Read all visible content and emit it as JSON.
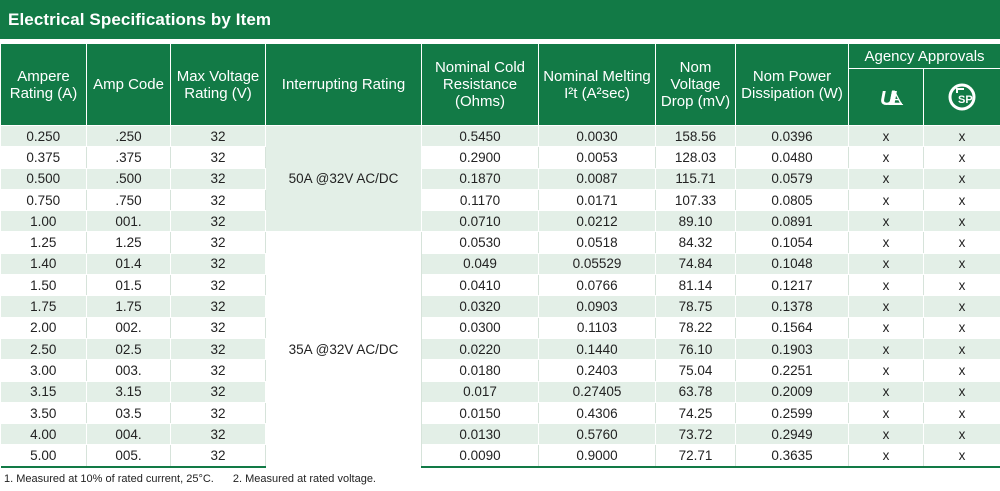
{
  "title": "Electrical Specifications by Item",
  "headers": {
    "ampere_rating": "Ampere Rating (A)",
    "amp_code": "Amp Code",
    "max_voltage": "Max Voltage Rating (V)",
    "interrupting": "Interrupting Rating",
    "cold_resistance": "Nominal Cold Resistance (Ohms)",
    "melting": "Nominal Melting I²t (A²sec)",
    "voltage_drop": "Nom Voltage Drop (mV)",
    "power": "Nom Power Dissipation (W)",
    "agency": "Agency Approvals",
    "agency_icons": [
      "ul-recognized-icon",
      "csa-icon"
    ]
  },
  "interrupting_groups": [
    {
      "label": "50A @32V AC/DC",
      "rows": 5
    },
    {
      "label": "35A @32V AC/DC",
      "rows": 11
    }
  ],
  "rows": [
    {
      "amp": "0.250",
      "code": ".250",
      "volt": "32",
      "res": "0.5450",
      "melt": "0.0030",
      "drop": "158.56",
      "power": "0.0396",
      "ul": "x",
      "csa": "x"
    },
    {
      "amp": "0.375",
      "code": ".375",
      "volt": "32",
      "res": "0.2900",
      "melt": "0.0053",
      "drop": "128.03",
      "power": "0.0480",
      "ul": "x",
      "csa": "x"
    },
    {
      "amp": "0.500",
      "code": ".500",
      "volt": "32",
      "res": "0.1870",
      "melt": "0.0087",
      "drop": "115.71",
      "power": "0.0579",
      "ul": "x",
      "csa": "x"
    },
    {
      "amp": "0.750",
      "code": ".750",
      "volt": "32",
      "res": "0.1170",
      "melt": "0.0171",
      "drop": "107.33",
      "power": "0.0805",
      "ul": "x",
      "csa": "x"
    },
    {
      "amp": "1.00",
      "code": "001.",
      "volt": "32",
      "res": "0.0710",
      "melt": "0.0212",
      "drop": "89.10",
      "power": "0.0891",
      "ul": "x",
      "csa": "x"
    },
    {
      "amp": "1.25",
      "code": "1.25",
      "volt": "32",
      "res": "0.0530",
      "melt": "0.0518",
      "drop": "84.32",
      "power": "0.1054",
      "ul": "x",
      "csa": "x"
    },
    {
      "amp": "1.40",
      "code": "01.4",
      "volt": "32",
      "res": "0.049",
      "melt": "0.05529",
      "drop": "74.84",
      "power": "0.1048",
      "ul": "x",
      "csa": "x"
    },
    {
      "amp": "1.50",
      "code": "01.5",
      "volt": "32",
      "res": "0.0410",
      "melt": "0.0766",
      "drop": "81.14",
      "power": "0.1217",
      "ul": "x",
      "csa": "x"
    },
    {
      "amp": "1.75",
      "code": "1.75",
      "volt": "32",
      "res": "0.0320",
      "melt": "0.0903",
      "drop": "78.75",
      "power": "0.1378",
      "ul": "x",
      "csa": "x"
    },
    {
      "amp": "2.00",
      "code": "002.",
      "volt": "32",
      "res": "0.0300",
      "melt": "0.1103",
      "drop": "78.22",
      "power": "0.1564",
      "ul": "x",
      "csa": "x"
    },
    {
      "amp": "2.50",
      "code": "02.5",
      "volt": "32",
      "res": "0.0220",
      "melt": "0.1440",
      "drop": "76.10",
      "power": "0.1903",
      "ul": "x",
      "csa": "x"
    },
    {
      "amp": "3.00",
      "code": "003.",
      "volt": "32",
      "res": "0.0180",
      "melt": "0.2403",
      "drop": "75.04",
      "power": "0.2251",
      "ul": "x",
      "csa": "x"
    },
    {
      "amp": "3.15",
      "code": "3.15",
      "volt": "32",
      "res": "0.017",
      "melt": "0.27405",
      "drop": "63.78",
      "power": "0.2009",
      "ul": "x",
      "csa": "x"
    },
    {
      "amp": "3.50",
      "code": "03.5",
      "volt": "32",
      "res": "0.0150",
      "melt": "0.4306",
      "drop": "74.25",
      "power": "0.2599",
      "ul": "x",
      "csa": "x"
    },
    {
      "amp": "4.00",
      "code": "004.",
      "volt": "32",
      "res": "0.0130",
      "melt": "0.5760",
      "drop": "73.72",
      "power": "0.2949",
      "ul": "x",
      "csa": "x"
    },
    {
      "amp": "5.00",
      "code": "005.",
      "volt": "32",
      "res": "0.0090",
      "melt": "0.9000",
      "drop": "72.71",
      "power": "0.3635",
      "ul": "x",
      "csa": "x"
    }
  ],
  "footnotes": [
    "1.  Measured at 10% of rated current, 25°C.",
    "2. Measured at rated voltage."
  ],
  "colors": {
    "header_green": "#127a46",
    "stripe": "#e3efe7"
  }
}
